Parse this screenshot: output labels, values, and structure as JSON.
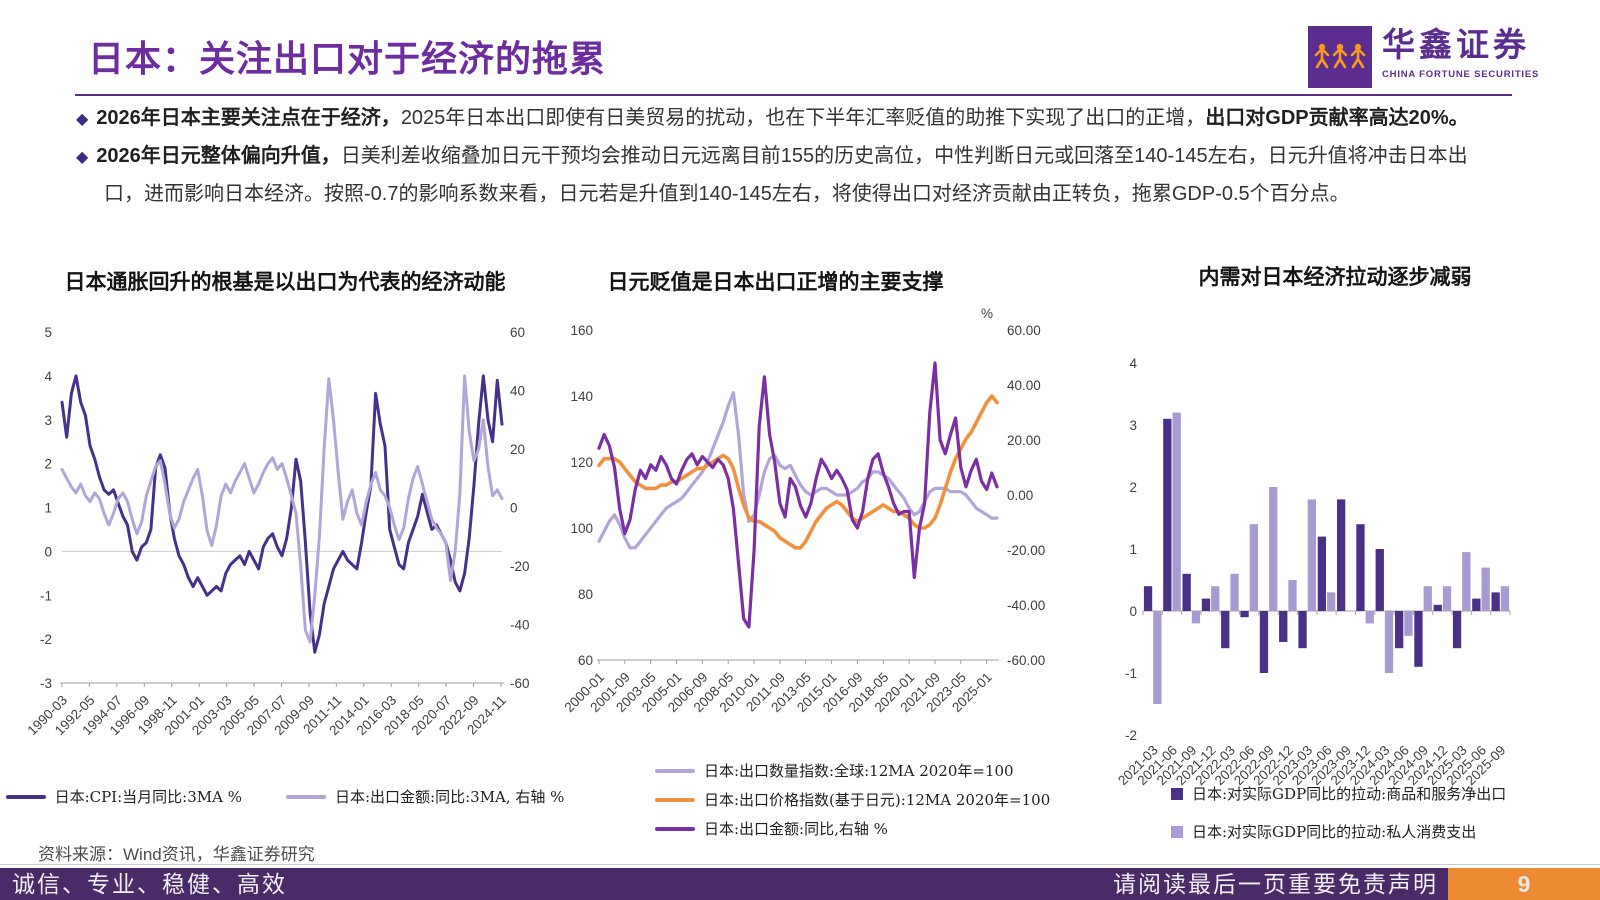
{
  "header": {
    "title": "日本：关注出口对于经济的拖累",
    "logo_cn": "华鑫证券",
    "logo_en": "CHINA FORTUNE SECURITIES"
  },
  "bullets": [
    [
      {
        "bold": true,
        "text": "2026年日本主要关注点在于经济，"
      },
      {
        "bold": false,
        "text": "2025年日本出口即使有日美贸易的扰动，也在下半年汇率贬值的助推下实现了出口的正增，"
      },
      {
        "bold": true,
        "text": "出口对GDP贡献率高达20%。"
      }
    ],
    [
      {
        "bold": true,
        "text": "2026年日元整体偏向升值，"
      },
      {
        "bold": false,
        "text": "日美利差收缩叠加日元干预均会推动日元远离目前155的历史高位，中性判断日元或回落至140-145左右，日元升值将冲击日本出口，进而影响日本经济。按照-0.7的影响系数来看，日元若是升值到140-145左右，将使得出口对经济贡献由正转负，拖累GDP-0.5个百分点。"
      }
    ]
  ],
  "source": "资料来源：Wind资讯，华鑫证券研究",
  "footer": {
    "left": "诚信、专业、稳健、高效",
    "right": "请阅读最后一页重要免责声明",
    "page": "9"
  },
  "colors": {
    "brand_purple": "#6e2d9f",
    "footer_purple": "#4b2a68",
    "footer_orange": "#ec8b33",
    "dark_series": "#453189",
    "light_series": "#b1a6d7",
    "bright_purple": "#7a30a3",
    "orange_series": "#f0913e",
    "bar_dark": "#4a3086",
    "bar_light": "#a79bd2"
  },
  "chart_data": [
    {
      "type": "line",
      "title": "日本通胀回升的根基是以出口为代表的经济动能",
      "x_ticks": [
        "1990-03",
        "1992-05",
        "1994-07",
        "1996-09",
        "1998-11",
        "2001-01",
        "2003-03",
        "2005-05",
        "2007-07",
        "2009-09",
        "2011-11",
        "2014-01",
        "2016-03",
        "2018-05",
        "2020-07",
        "2022-09",
        "2024-11"
      ],
      "left_axis": {
        "ticks": [
          5,
          4,
          3,
          2,
          1,
          0,
          -1,
          -2,
          -3
        ],
        "range": [
          -3,
          5
        ]
      },
      "right_axis": {
        "ticks": [
          60,
          40,
          20,
          0,
          -20,
          -40,
          -60
        ],
        "range": [
          -60,
          60
        ]
      },
      "grid": "zero-line only",
      "legend_position": "bottom-row",
      "series": [
        {
          "name": "日本:CPI:当月同比:3MA %",
          "axis": "left",
          "color": "#453189",
          "width": 3,
          "values": [
            3.4,
            2.6,
            3.6,
            4.0,
            3.4,
            3.1,
            2.4,
            2.1,
            1.7,
            1.4,
            1.3,
            1.4,
            1.1,
            0.8,
            0.6,
            0.0,
            -0.2,
            0.1,
            0.2,
            0.5,
            1.9,
            2.2,
            1.9,
            0.9,
            0.3,
            -0.1,
            -0.3,
            -0.6,
            -0.8,
            -0.6,
            -0.8,
            -1.0,
            -0.9,
            -0.8,
            -0.9,
            -0.5,
            -0.3,
            -0.2,
            -0.1,
            -0.3,
            0.0,
            -0.2,
            -0.4,
            0.1,
            0.3,
            0.4,
            0.1,
            -0.1,
            0.3,
            1.0,
            2.1,
            1.6,
            0.2,
            -1.4,
            -2.3,
            -1.9,
            -1.2,
            -0.8,
            -0.4,
            -0.2,
            0.0,
            -0.2,
            -0.3,
            -0.4,
            0.2,
            0.9,
            1.5,
            3.6,
            2.9,
            2.4,
            0.5,
            0.1,
            -0.3,
            -0.4,
            0.2,
            0.5,
            0.8,
            1.3,
            0.9,
            0.5,
            0.6,
            0.4,
            0.2,
            -0.2,
            -0.7,
            -0.9,
            -0.5,
            0.3,
            1.5,
            2.9,
            4.0,
            3.0,
            2.5,
            3.9,
            2.9
          ]
        },
        {
          "name": "日本:出口金额:同比:3MA, 右轴 %",
          "axis": "right",
          "color": "#b1a6d7",
          "width": 3,
          "values": [
            13,
            10,
            7,
            5,
            8,
            4,
            2,
            5,
            3,
            -2,
            -6,
            -2,
            3,
            5,
            2,
            -4,
            -9,
            -5,
            4,
            9,
            14,
            16,
            8,
            -2,
            -7,
            -4,
            2,
            6,
            10,
            13,
            4,
            -8,
            -13,
            -6,
            4,
            8,
            5,
            9,
            12,
            15,
            10,
            5,
            8,
            12,
            15,
            17,
            13,
            15,
            10,
            4,
            -2,
            -20,
            -42,
            -46,
            -30,
            -10,
            20,
            44,
            30,
            12,
            -4,
            2,
            6,
            -2,
            -6,
            2,
            8,
            12,
            6,
            4,
            0,
            -6,
            -11,
            -7,
            3,
            10,
            14,
            8,
            2,
            -4,
            -7,
            -9,
            -12,
            -25,
            -15,
            5,
            45,
            26,
            16,
            20,
            30,
            14,
            4,
            6,
            3
          ]
        }
      ]
    },
    {
      "type": "line",
      "title": "日元贬值是日本出口正增的主要支撑",
      "x_ticks": [
        "2000-01",
        "2001-09",
        "2003-05",
        "2005-01",
        "2006-09",
        "2008-05",
        "2010-01",
        "2011-09",
        "2013-05",
        "2015-01",
        "2016-09",
        "2018-05",
        "2020-01",
        "2021-09",
        "2023-05",
        "2025-01"
      ],
      "left_axis": {
        "ticks": [
          160,
          140,
          120,
          100,
          80,
          60
        ],
        "range": [
          60,
          160
        ]
      },
      "right_axis": {
        "ticks": [
          "60.00",
          "40.00",
          "20.00",
          "0.00",
          "-20.00",
          "-40.00",
          "-60.00"
        ],
        "range": [
          -60,
          60
        ],
        "unit": "%"
      },
      "grid": "none",
      "legend_position": "bottom-stack",
      "series": [
        {
          "name": "日本:出口数量指数:全球:12MA 2020年=100",
          "axis": "left",
          "color": "#b1a6d7",
          "width": 3.2,
          "values": [
            96,
            99,
            102,
            104,
            101,
            97,
            94,
            94,
            96,
            98,
            100,
            102,
            104,
            106,
            107,
            108,
            109,
            111,
            113,
            115,
            117,
            120,
            124,
            128,
            132,
            137,
            141,
            128,
            110,
            102,
            104,
            110,
            117,
            121,
            122,
            119,
            118,
            119,
            116,
            113,
            111,
            110,
            111,
            112,
            112,
            111,
            110,
            110,
            110,
            111,
            112,
            114,
            115,
            117,
            117,
            116,
            115,
            113,
            111,
            109,
            106,
            104,
            105,
            108,
            111,
            112,
            112,
            112,
            111,
            111,
            111,
            110,
            108,
            106,
            105,
            104,
            103,
            103
          ]
        },
        {
          "name": "日本:出口价格指数(基于日元):12MA 2020年=100",
          "axis": "left",
          "color": "#f0913e",
          "width": 3.6,
          "values": [
            119,
            121,
            121,
            121,
            120,
            118,
            116,
            114,
            113,
            112,
            112,
            112,
            113,
            113,
            114,
            114,
            115,
            116,
            117,
            118,
            118,
            119,
            120,
            121,
            122,
            121,
            118,
            112,
            107,
            103,
            102,
            102,
            101,
            100,
            99,
            97,
            96,
            95,
            94,
            94,
            96,
            99,
            102,
            104,
            106,
            107,
            108,
            107,
            105,
            103,
            102,
            103,
            104,
            105,
            106,
            107,
            106,
            105,
            105,
            104,
            103,
            101,
            100,
            100,
            101,
            103,
            107,
            112,
            117,
            121,
            124,
            127,
            129,
            132,
            135,
            138,
            140,
            138
          ]
        },
        {
          "name": "日本:出口金额:同比,右轴 %",
          "axis": "right",
          "color": "#7a30a3",
          "width": 3.2,
          "values": [
            17,
            22,
            18,
            10,
            -5,
            -14,
            -9,
            2,
            9,
            6,
            11,
            9,
            14,
            11,
            6,
            4,
            9,
            13,
            15,
            11,
            14,
            12,
            10,
            13,
            11,
            6,
            -5,
            -25,
            -45,
            -48,
            -20,
            25,
            43,
            22,
            12,
            -3,
            -8,
            6,
            3,
            -4,
            -8,
            -3,
            6,
            13,
            10,
            6,
            9,
            6,
            2,
            -9,
            -12,
            -6,
            6,
            13,
            15,
            8,
            3,
            -3,
            -7,
            -6,
            -6,
            -30,
            -12,
            -3,
            30,
            48,
            20,
            15,
            22,
            28,
            10,
            3,
            9,
            13,
            5,
            2,
            8,
            3
          ]
        }
      ]
    },
    {
      "type": "bar",
      "title": "内需对日本经济拉动逐步减弱",
      "categories": [
        "2021-03",
        "2021-06",
        "2021-09",
        "2021-12",
        "2022-03",
        "2022-06",
        "2022-09",
        "2022-12",
        "2023-03",
        "2023-06",
        "2023-09",
        "2023-12",
        "2024-03",
        "2024-06",
        "2024-09",
        "2024-12",
        "2025-03",
        "2025-06",
        "2025-09"
      ],
      "y_ticks": [
        4,
        3,
        2,
        1,
        0,
        -1,
        -2
      ],
      "ylim": [
        -2,
        4
      ],
      "grid": "none",
      "legend_position": "bottom-stack",
      "series": [
        {
          "name": "日本:对实际GDP同比的拉动:商品和服务净出口",
          "color": "#4a3086",
          "values": [
            0.4,
            3.1,
            0.6,
            0.2,
            -0.6,
            -0.1,
            -1.0,
            -0.5,
            -0.6,
            1.2,
            1.8,
            1.4,
            1.0,
            -0.6,
            -0.9,
            0.1,
            -0.6,
            0.2,
            0.3
          ]
        },
        {
          "name": "日本:对实际GDP同比的拉动:私人消费支出",
          "color": "#a79bd2",
          "values": [
            -1.5,
            3.2,
            -0.2,
            0.4,
            0.6,
            1.4,
            2.0,
            0.5,
            1.8,
            0.3,
            0.0,
            -0.2,
            -1.0,
            -0.4,
            0.4,
            0.4,
            0.95,
            0.7,
            0.4
          ]
        }
      ]
    }
  ]
}
